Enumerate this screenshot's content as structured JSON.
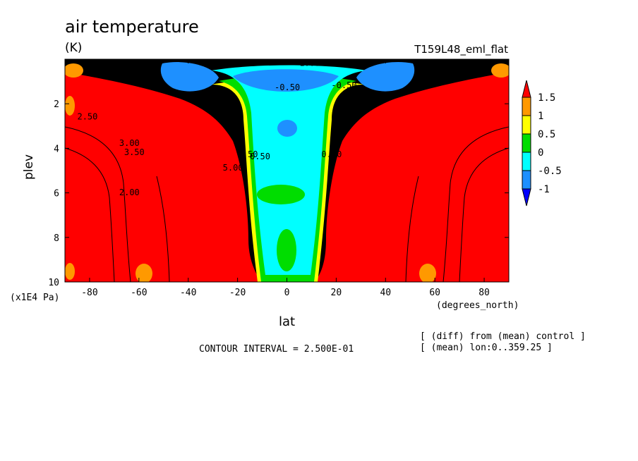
{
  "header": {
    "title": "air temperature",
    "units": "(K)",
    "experiment": "T159L48_eml_flat"
  },
  "footer": {
    "contour_interval": "CONTOUR INTERVAL = 2.500E-01",
    "note_diff": "[ (diff) from (mean) control ]",
    "note_mean": "[ (mean) lon:0..359.25 ]"
  },
  "chart_data": {
    "type": "heatmap",
    "title": "air temperature",
    "subtitle": "(K)",
    "xlabel": "lat",
    "xunit": "(degrees_north)",
    "ylabel": "plev",
    "yunit": "(x1E4 Pa)",
    "xlim": [
      -90,
      90
    ],
    "ylim": [
      10,
      0
    ],
    "xticks": [
      -80,
      -60,
      -40,
      -20,
      0,
      20,
      40,
      60,
      80
    ],
    "yticks": [
      2,
      4,
      6,
      8,
      10
    ],
    "colorbar": {
      "labels": [
        "1.5",
        "1",
        "0.5",
        "0",
        "-0.5",
        "-1"
      ],
      "colors": [
        "#ff0000",
        "#ff9900",
        "#ffff00",
        "#00dd00",
        "#00ffff",
        "#1e90ff",
        "#0000ff"
      ]
    },
    "contour_labels": [
      "2.50",
      "3.00",
      "3.50",
      "5.00",
      "4.50",
      "2.00",
      "0.50",
      "0.00",
      "-0.50",
      "-1.00",
      "-0.50"
    ]
  }
}
